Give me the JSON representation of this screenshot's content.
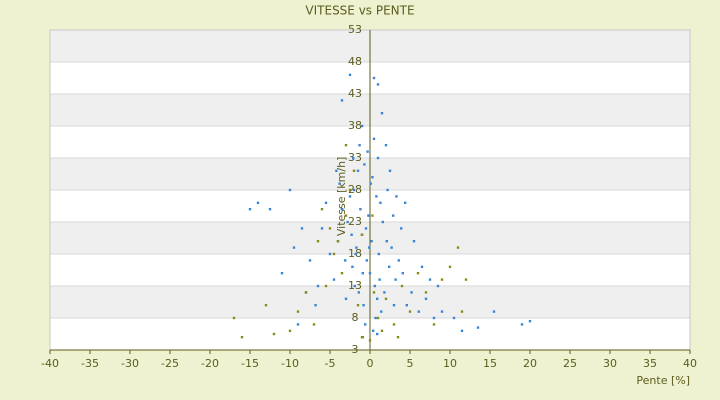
{
  "chart_data": {
    "type": "scatter",
    "title": "VITESSE vs PENTE",
    "x_label": "Pente [%]",
    "y_label": "Vitesse [km/h]",
    "xlim": [
      -40,
      40
    ],
    "xticks": [
      -40,
      -35,
      -30,
      -25,
      -20,
      -15,
      -10,
      -5,
      0,
      5,
      10,
      15,
      20,
      25,
      30,
      35,
      40
    ],
    "ylim": [
      3,
      53
    ],
    "yticks": [
      3,
      8,
      13,
      18,
      23,
      28,
      33,
      38,
      43,
      48,
      53
    ],
    "grid": true,
    "series": [
      {
        "color": "#3a86d4",
        "x": [
          -0.5,
          0.2,
          -1.2,
          1.1,
          -2.3,
          2.4,
          0.8,
          -0.9,
          1.6,
          -1.7,
          0.3,
          -3.1,
          3.2,
          -0.2,
          0.6,
          -2.0,
          2.1,
          -1.4,
          1.3,
          -0.7,
          0.9,
          -2.8,
          2.7,
          -4.0,
          4.1,
          -0.4,
          0.1,
          -1.0,
          1.8,
          -3.5,
          3.6,
          -5.0,
          5.2,
          -4.5,
          4.6,
          -6.0,
          6.1,
          -0.3,
          0.5,
          -1.5,
          1.0,
          -2.5,
          2.9,
          -3.8,
          3.9,
          -0.8,
          0.7,
          -1.9,
          1.4,
          -2.2,
          2.2,
          -6.5,
          7.0,
          -7.5,
          8.0,
          -8.5,
          9.0,
          -9.5,
          10.5,
          -11.0,
          11.5,
          -12.5,
          -14.0,
          -15.0,
          -10.0,
          13.5,
          15.5,
          19.0,
          20.0,
          0.5,
          1.0,
          -2.5,
          -3.5,
          1.5,
          -1.0,
          -0.6,
          0.4,
          -1.3,
          2.5,
          -2.1,
          3.3,
          -4.2,
          4.4,
          -0.1,
          0.0,
          1.2,
          -1.8,
          -5.5,
          5.5,
          -3.0,
          3.0,
          6.5,
          -6.8,
          -8.0,
          7.5,
          8.5,
          -9.0,
          -0.9,
          0.9,
          2.0
        ],
        "values": [
          22,
          20,
          25,
          18,
          21,
          16,
          27,
          15,
          23,
          19,
          30,
          17,
          14,
          24,
          13,
          28,
          20,
          12,
          26,
          32,
          11,
          23,
          19,
          20,
          15,
          17,
          29,
          21,
          12,
          25,
          17,
          18,
          12,
          14,
          10,
          22,
          9,
          34,
          36,
          31,
          33,
          27,
          24,
          29,
          22,
          10,
          8,
          13,
          9,
          16,
          28,
          13,
          11,
          17,
          8,
          22,
          9,
          19,
          8,
          15,
          6,
          25,
          26,
          25,
          28,
          6.5,
          9,
          7,
          7.5,
          45.5,
          44.5,
          46,
          42,
          40,
          38,
          7,
          6,
          35,
          31,
          33,
          27,
          31,
          26,
          19,
          15,
          14,
          18,
          26,
          20,
          11,
          10,
          16,
          10,
          12,
          14,
          13,
          7,
          5,
          5.5,
          35
        ]
      },
      {
        "color": "#8c8c14",
        "x": [
          -17,
          -16,
          -13,
          -12,
          -10,
          -9,
          -8,
          -7,
          -6,
          -5,
          -4,
          -3,
          -2.5,
          -4.5,
          -3.5,
          -1.5,
          -1,
          0,
          0.5,
          1,
          1.5,
          2,
          3,
          3.5,
          4,
          5,
          6,
          7,
          8,
          9,
          10,
          11,
          11.5,
          12,
          -2,
          -3,
          -1,
          0.3,
          -5.5,
          -6.5
        ],
        "values": [
          8,
          5,
          10,
          5.5,
          6,
          9,
          12,
          7,
          25,
          22,
          20,
          24,
          28,
          18,
          15,
          10,
          5,
          4.5,
          12,
          8,
          6,
          11,
          7,
          5,
          13,
          9,
          15,
          12,
          7,
          14,
          16,
          19,
          9,
          14,
          31,
          35,
          21,
          24,
          13,
          20
        ]
      }
    ]
  }
}
